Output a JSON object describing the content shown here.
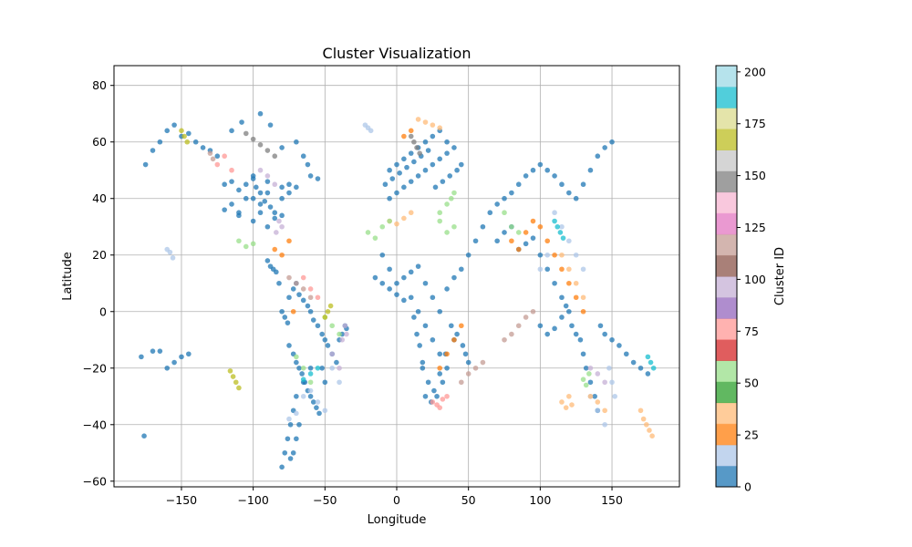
{
  "chart_data": {
    "type": "scatter",
    "title": "Cluster Visualization",
    "xlabel": "Longitude",
    "ylabel": "Latitude",
    "xlim": [
      -197,
      197
    ],
    "ylim": [
      -62,
      87
    ],
    "xticks": [
      -150,
      -100,
      -50,
      0,
      50,
      100,
      150
    ],
    "yticks": [
      -60,
      -40,
      -20,
      0,
      20,
      40,
      60,
      80
    ],
    "xtick_labels": [
      "−150",
      "−100",
      "−50",
      "0",
      "50",
      "100",
      "150"
    ],
    "ytick_labels": [
      "−60",
      "−40",
      "−20",
      "0",
      "20",
      "40",
      "60",
      "80"
    ],
    "grid": true,
    "colormap": "tab20",
    "colorbar": {
      "label": "Cluster ID",
      "range": [
        0,
        203
      ],
      "ticks": [
        0,
        25,
        50,
        75,
        100,
        125,
        150,
        175,
        200
      ],
      "tick_labels": [
        "0",
        "25",
        "50",
        "75",
        "100",
        "125",
        "150",
        "175",
        "200"
      ],
      "colors": [
        "#1f77b4",
        "#aec7e8",
        "#ff7f0e",
        "#ffbb78",
        "#2ca02c",
        "#98df8a",
        "#d62728",
        "#ff9896",
        "#9467bd",
        "#c5b0d5",
        "#8c564b",
        "#c49c94",
        "#e377c2",
        "#f7b6d2",
        "#7f7f7f",
        "#c7c7c7",
        "#bcbd22",
        "#dbdb8d",
        "#17becf",
        "#9edae5"
      ]
    },
    "series": [
      {
        "cluster": 0,
        "x": [
          -100,
          -95,
          -90,
          -85,
          -80,
          -105,
          -110,
          -115,
          -120,
          -75,
          -100,
          -95,
          -90,
          -85,
          -110,
          -120,
          -100,
          -80,
          -75,
          -70,
          -100,
          -90,
          -110,
          -80,
          -95,
          -105,
          -115,
          -88,
          -98,
          -92
        ],
        "y": [
          40,
          38,
          42,
          35,
          40,
          45,
          43,
          38,
          45,
          42,
          32,
          35,
          30,
          33,
          34,
          36,
          47,
          44,
          45,
          44,
          48,
          46,
          35,
          34,
          42,
          40,
          46,
          37,
          44,
          39
        ]
      },
      {
        "cluster": 0,
        "x": [
          -150,
          -145,
          -140,
          -135,
          -130,
          -125,
          -160,
          -155,
          -165,
          -175,
          -170,
          -115,
          -108,
          -95,
          -88,
          -80,
          -70,
          -65,
          -60,
          -62,
          -55
        ],
        "y": [
          62,
          63,
          60,
          58,
          57,
          55,
          64,
          66,
          60,
          52,
          57,
          64,
          67,
          70,
          66,
          58,
          60,
          55,
          48,
          52,
          47
        ]
      },
      {
        "cluster": 0,
        "x": [
          -75,
          -72,
          -70,
          -68,
          -65,
          -62,
          -60,
          -58,
          -55,
          -52,
          -50,
          -48,
          -45,
          -42,
          -40,
          -38,
          -36,
          -35,
          -60,
          -65,
          -70,
          -72,
          -74,
          -76,
          -78,
          -80
        ],
        "y": [
          5,
          8,
          10,
          6,
          4,
          2,
          0,
          -3,
          -5,
          -8,
          -10,
          -12,
          -15,
          -18,
          -10,
          -8,
          -5,
          -6,
          -20,
          -25,
          -30,
          -35,
          -40,
          -45,
          -50,
          -55
        ]
      },
      {
        "cluster": 0,
        "x": [
          -75,
          -72,
          -70,
          -68,
          -66,
          -64,
          -62,
          -60,
          -58,
          -56,
          -54,
          -52,
          -50,
          -68,
          -70,
          -72,
          -74,
          -76,
          -78,
          -80,
          -82,
          -84,
          -86,
          -88,
          -90
        ],
        "y": [
          -12,
          -15,
          -18,
          -20,
          -22,
          -25,
          -28,
          -30,
          -32,
          -34,
          -36,
          -20,
          -25,
          -40,
          -45,
          -50,
          -52,
          -4,
          -2,
          0,
          10,
          14,
          15,
          16,
          18
        ]
      },
      {
        "cluster": 0,
        "x": [
          -5,
          0,
          5,
          10,
          15,
          20,
          25,
          30,
          35,
          -5,
          0,
          5,
          10,
          15,
          20,
          25,
          30,
          35,
          40,
          -8,
          -3,
          2,
          7,
          12,
          17,
          22,
          27,
          32,
          37,
          42,
          45
        ],
        "y": [
          40,
          42,
          44,
          46,
          48,
          50,
          52,
          54,
          56,
          50,
          52,
          54,
          56,
          58,
          60,
          62,
          64,
          60,
          58,
          45,
          47,
          49,
          51,
          53,
          55,
          57,
          44,
          46,
          48,
          50,
          52
        ]
      },
      {
        "cluster": 0,
        "x": [
          -10,
          -5,
          0,
          5,
          10,
          15,
          20,
          25,
          30,
          35,
          40,
          45,
          50,
          55,
          60,
          65,
          70,
          75,
          80,
          85,
          90,
          95,
          100,
          105,
          110,
          115,
          120,
          125,
          130,
          135,
          140,
          145,
          150
        ],
        "y": [
          20,
          15,
          10,
          12,
          14,
          16,
          10,
          5,
          0,
          8,
          12,
          15,
          20,
          25,
          30,
          35,
          38,
          40,
          42,
          45,
          48,
          50,
          52,
          50,
          48,
          45,
          42,
          40,
          45,
          50,
          55,
          58,
          60
        ]
      },
      {
        "cluster": 0,
        "x": [
          10,
          15,
          20,
          25,
          30,
          35,
          40,
          18,
          22,
          26,
          28,
          32,
          34,
          20,
          24,
          30,
          -15,
          -10,
          -5,
          0,
          5,
          38,
          42,
          46,
          48,
          50,
          12,
          14,
          16,
          18
        ],
        "y": [
          5,
          0,
          -5,
          -10,
          -15,
          -20,
          -10,
          -20,
          -25,
          -28,
          -30,
          -25,
          -15,
          -30,
          -32,
          -22,
          12,
          10,
          8,
          6,
          4,
          -5,
          -8,
          -12,
          -15,
          -18,
          -2,
          -8,
          -12,
          -18
        ]
      },
      {
        "cluster": 0,
        "x": [
          70,
          75,
          80,
          85,
          90,
          95,
          100,
          105,
          110,
          115,
          120,
          100,
          105,
          110,
          115,
          118,
          122,
          125,
          128,
          130,
          132,
          135,
          138,
          140,
          142,
          145,
          150,
          155,
          160,
          165,
          170,
          175,
          -178,
          -176,
          -170,
          -160,
          -150,
          -145,
          -155,
          -165
        ],
        "y": [
          25,
          28,
          30,
          22,
          24,
          26,
          20,
          15,
          10,
          5,
          0,
          -5,
          -8,
          -6,
          -2,
          2,
          -5,
          -8,
          -10,
          -15,
          -20,
          -25,
          -30,
          -35,
          -5,
          -8,
          -10,
          -12,
          -15,
          -18,
          -20,
          -22,
          -16,
          -44,
          -14,
          -20,
          -16,
          -15,
          -18,
          -14
        ]
      },
      {
        "cluster": 20,
        "x": [
          -75,
          -70,
          -65,
          -60,
          -55,
          -50,
          -45,
          -40,
          148,
          150,
          152,
          145,
          140,
          135,
          130,
          125,
          120,
          115,
          110,
          105,
          100,
          -160,
          -158,
          -156,
          -20,
          -22,
          -18
        ],
        "y": [
          -38,
          -36,
          -30,
          -28,
          -32,
          -35,
          -20,
          -25,
          -20,
          -25,
          -30,
          -40,
          -35,
          -30,
          15,
          20,
          25,
          30,
          35,
          20,
          15,
          22,
          21,
          19,
          65,
          66,
          64
        ]
      },
      {
        "cluster": 25,
        "x": [
          -85,
          -80,
          -75,
          -72,
          45,
          40,
          35,
          30,
          85,
          80,
          90,
          95,
          100,
          105,
          110,
          115,
          120,
          125,
          130,
          5,
          10
        ],
        "y": [
          22,
          20,
          25,
          0,
          -5,
          -10,
          -15,
          -20,
          22,
          25,
          28,
          32,
          30,
          25,
          20,
          15,
          10,
          5,
          0,
          62,
          64
        ]
      },
      {
        "cluster": 40,
        "x": [
          15,
          20,
          25,
          30,
          -5,
          0,
          5,
          10,
          115,
          120,
          125,
          130,
          135,
          140,
          145,
          170,
          172,
          174,
          176,
          178,
          115,
          118,
          120,
          122
        ],
        "y": [
          68,
          67,
          66,
          65,
          32,
          31,
          33,
          35,
          20,
          15,
          10,
          5,
          -30,
          -32,
          -35,
          -35,
          -38,
          -40,
          -42,
          -44,
          -32,
          -34,
          -30,
          -33
        ]
      },
      {
        "cluster": 55,
        "x": [
          -20,
          -15,
          -10,
          -5,
          30,
          35,
          38,
          40,
          -110,
          -105,
          -100
        ],
        "y": [
          28,
          26,
          30,
          32,
          35,
          38,
          40,
          42,
          25,
          23,
          24
        ]
      },
      {
        "cluster": 60,
        "x": [
          -50,
          -45,
          -40,
          35,
          40,
          30,
          75,
          80,
          85,
          130,
          132,
          134,
          -65,
          -70,
          -60
        ],
        "y": [
          -2,
          -5,
          -8,
          28,
          30,
          32,
          35,
          30,
          28,
          -24,
          -26,
          -22,
          -20,
          -16,
          -25
        ]
      },
      {
        "cluster": 80,
        "x": [
          -65,
          -60,
          -55,
          25,
          28,
          30,
          32,
          35,
          -120,
          -125,
          -115
        ],
        "y": [
          12,
          8,
          5,
          -32,
          -33,
          -34,
          -31,
          -30,
          55,
          52,
          50
        ]
      },
      {
        "cluster": 100,
        "x": [
          -45,
          -40,
          -38,
          -36,
          -35,
          -95,
          -90,
          -85,
          145,
          140,
          135,
          -80,
          -82,
          -84
        ],
        "y": [
          -15,
          -20,
          -10,
          -5,
          -8,
          50,
          48,
          45,
          -25,
          -22,
          -20,
          30,
          32,
          28
        ]
      },
      {
        "cluster": 120,
        "x": [
          -75,
          -70,
          -65,
          -60,
          45,
          50,
          55,
          60,
          75,
          80,
          85,
          90,
          95,
          -130,
          -128
        ],
        "y": [
          12,
          10,
          8,
          5,
          -25,
          -22,
          -20,
          -18,
          -10,
          -8,
          -5,
          -2,
          0,
          56,
          54
        ]
      },
      {
        "cluster": 150,
        "x": [
          10,
          12,
          14,
          16,
          -105,
          -100,
          -95,
          -90,
          -85
        ],
        "y": [
          62,
          60,
          58,
          56,
          63,
          61,
          59,
          57,
          55
        ]
      },
      {
        "cluster": 170,
        "x": [
          -150,
          -148,
          -146,
          -110,
          -112,
          -114,
          -116,
          -50,
          -48,
          -46
        ],
        "y": [
          64,
          62,
          60,
          -27,
          -25,
          -23,
          -21,
          -2,
          0,
          2
        ]
      },
      {
        "cluster": 190,
        "x": [
          -65,
          -60,
          -55,
          175,
          177,
          179,
          110,
          112,
          114,
          116
        ],
        "y": [
          -24,
          -22,
          -20,
          -16,
          -18,
          -20,
          32,
          30,
          28,
          26
        ]
      }
    ]
  }
}
